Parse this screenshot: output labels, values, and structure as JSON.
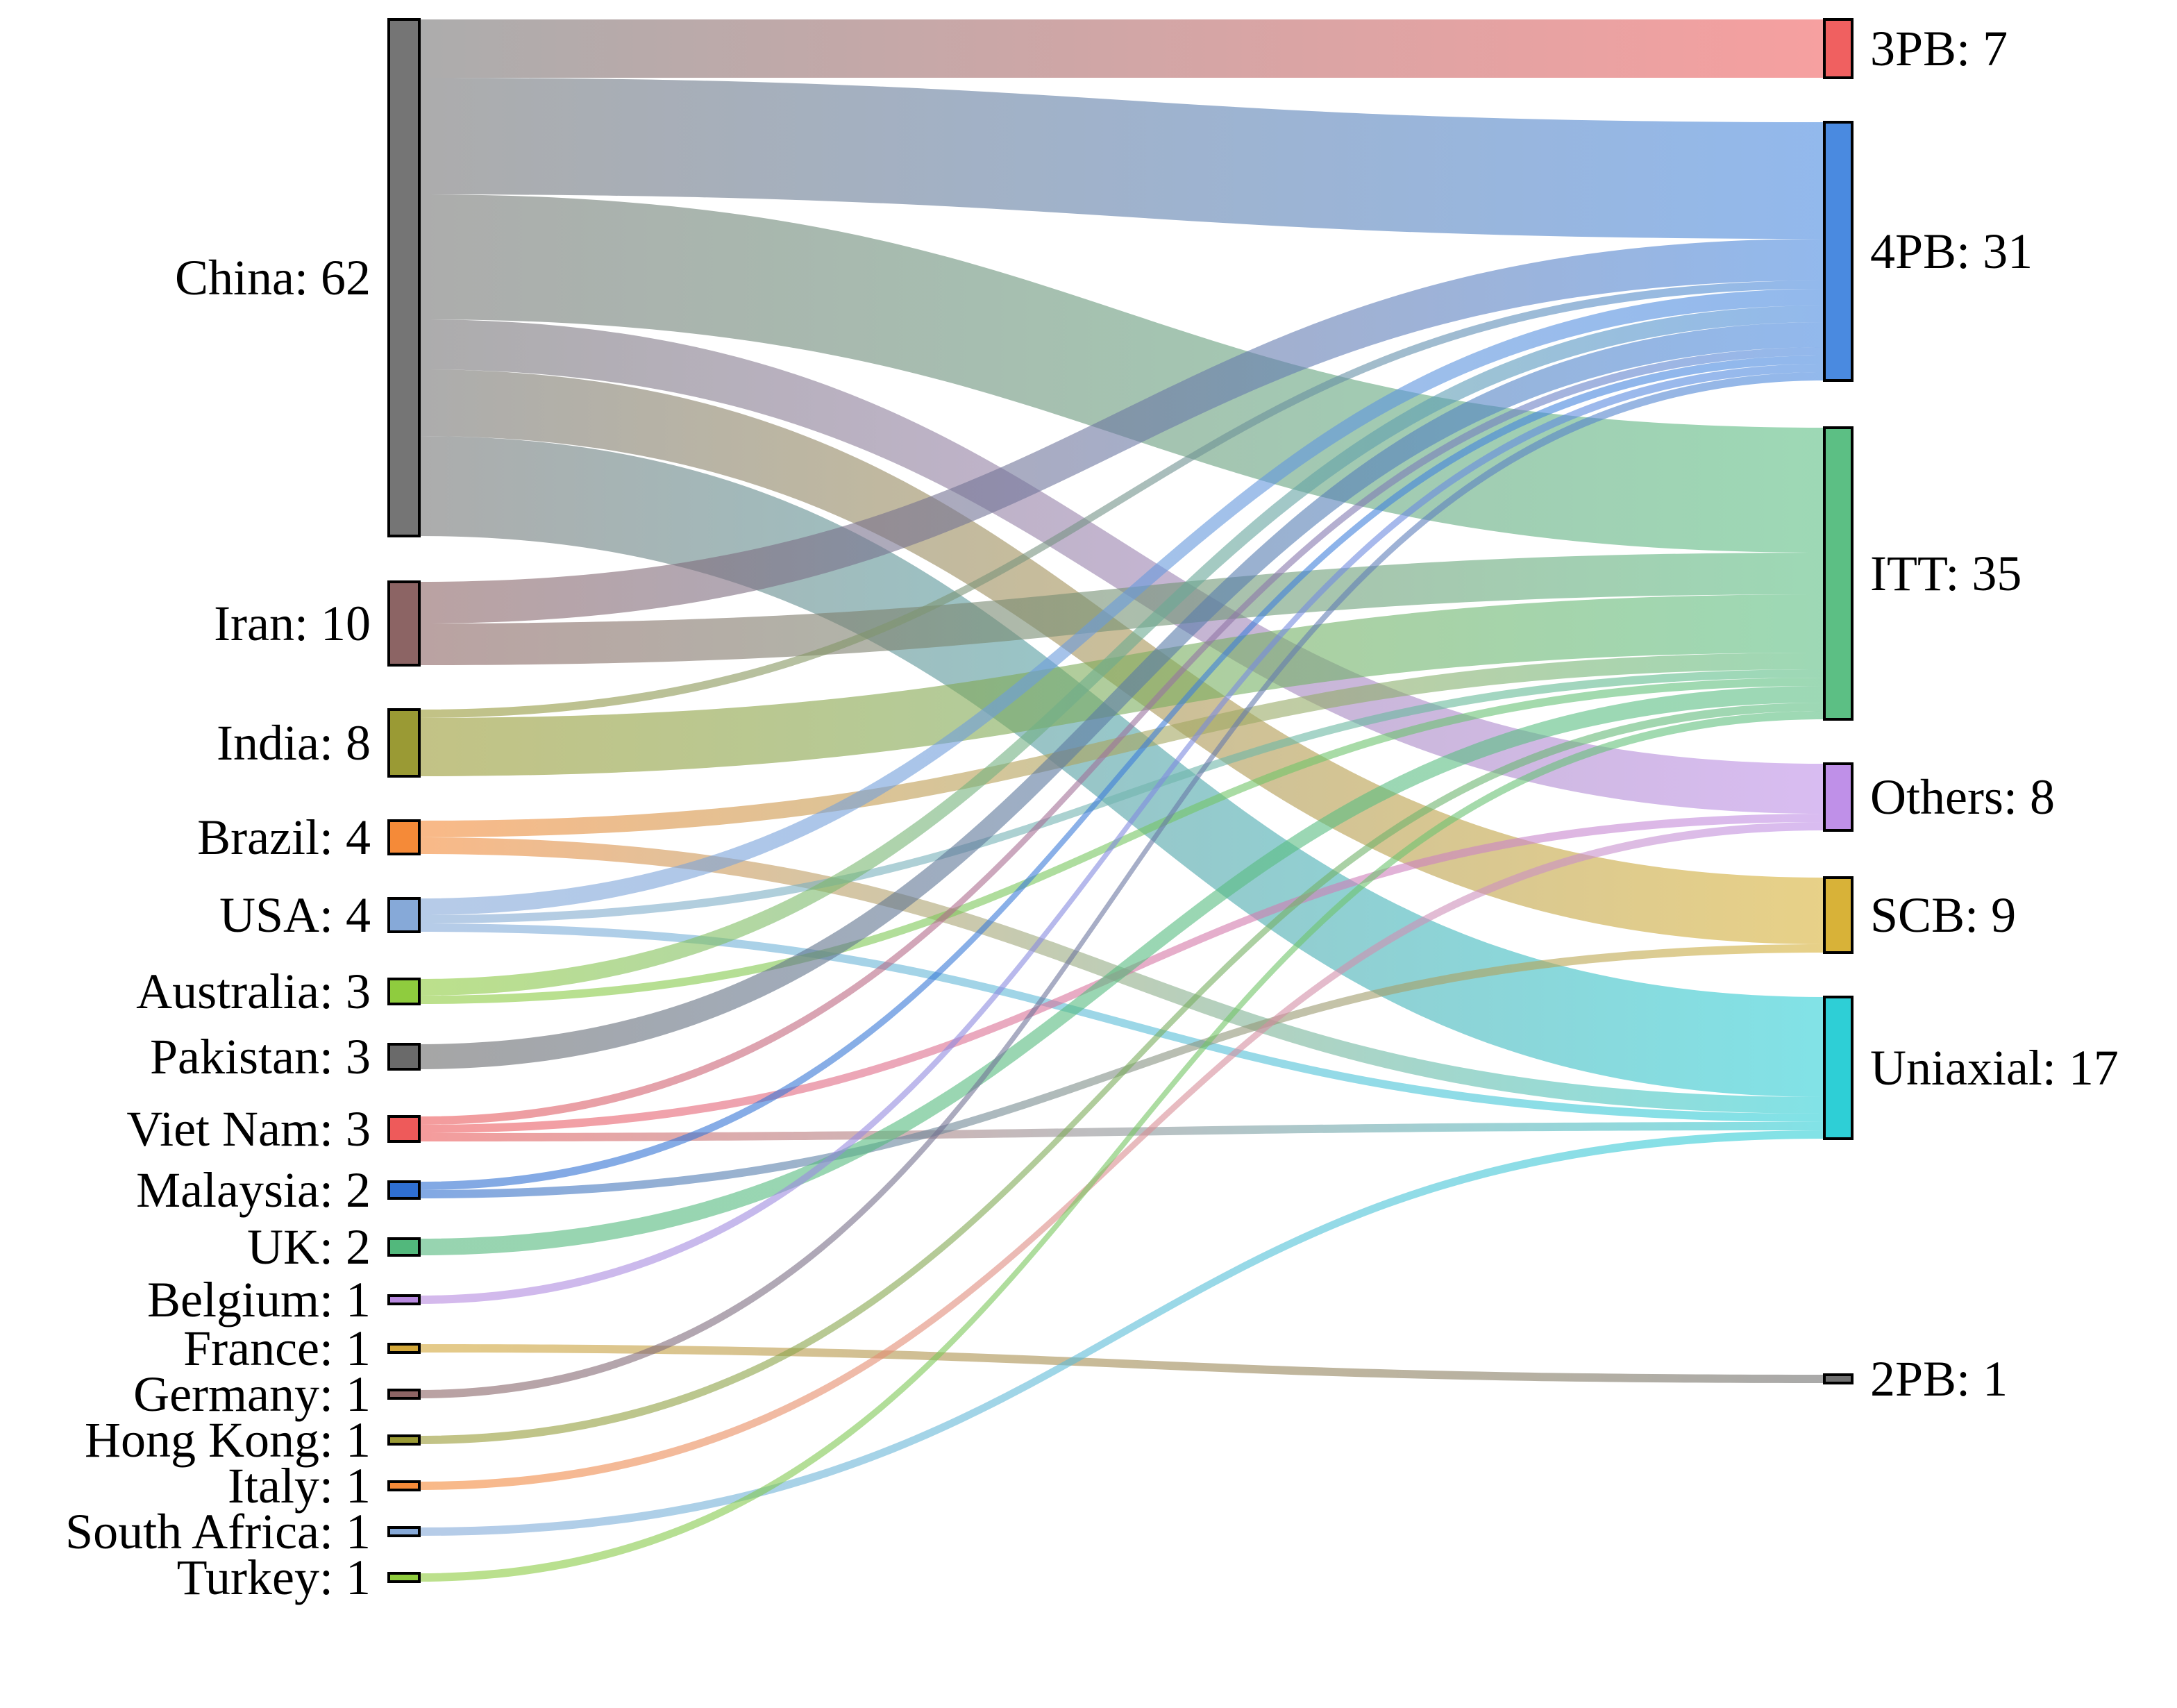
{
  "chart_data": {
    "type": "sankey",
    "title": "",
    "sources": [
      {
        "name": "China",
        "label": "China: 62",
        "value": 62,
        "color": "#757575"
      },
      {
        "name": "Iran",
        "label": "Iran: 10",
        "value": 10,
        "color": "#8c6464"
      },
      {
        "name": "India",
        "label": "India: 8",
        "value": 8,
        "color": "#9a9a34"
      },
      {
        "name": "Brazil",
        "label": "Brazil: 4",
        "value": 4,
        "color": "#f58a38"
      },
      {
        "name": "USA",
        "label": "USA: 4",
        "value": 4,
        "color": "#86a9d8"
      },
      {
        "name": "Australia",
        "label": "Australia: 3",
        "value": 3,
        "color": "#8fcc3e"
      },
      {
        "name": "Pakistan",
        "label": "Pakistan: 3",
        "value": 3,
        "color": "#6a6a6a"
      },
      {
        "name": "Viet Nam",
        "label": "Viet Nam: 3",
        "value": 3,
        "color": "#ee5a5a"
      },
      {
        "name": "Malaysia",
        "label": "Malaysia: 2",
        "value": 2,
        "color": "#2f6fd2"
      },
      {
        "name": "UK",
        "label": "UK: 2",
        "value": 2,
        "color": "#52b87c"
      },
      {
        "name": "Belgium",
        "label": "Belgium: 1",
        "value": 1,
        "color": "#b98ae0"
      },
      {
        "name": "France",
        "label": "France: 1",
        "value": 1,
        "color": "#d4a83a"
      },
      {
        "name": "Germany",
        "label": "Germany: 1",
        "value": 1,
        "color": "#8c6464"
      },
      {
        "name": "Hong Kong",
        "label": "Hong Kong: 1",
        "value": 1,
        "color": "#9a9a34"
      },
      {
        "name": "Italy",
        "label": "Italy: 1",
        "value": 1,
        "color": "#f58a38"
      },
      {
        "name": "South Africa",
        "label": "South Africa: 1",
        "value": 1,
        "color": "#86a9d8"
      },
      {
        "name": "Turkey",
        "label": "Turkey: 1",
        "value": 1,
        "color": "#8fcc3e"
      }
    ],
    "targets": [
      {
        "name": "3PB",
        "label": "3PB: 7",
        "value": 7,
        "color": "#f06060"
      },
      {
        "name": "4PB",
        "label": "4PB: 31",
        "value": 31,
        "color": "#4a8ae0"
      },
      {
        "name": "ITT",
        "label": "ITT: 35",
        "value": 35,
        "color": "#5cbf84"
      },
      {
        "name": "Others",
        "label": "Others: 8",
        "value": 8,
        "color": "#bf90e8"
      },
      {
        "name": "SCB",
        "label": "SCB: 9",
        "value": 9,
        "color": "#d8b238"
      },
      {
        "name": "Uniaxial",
        "label": "Uniaxial: 17",
        "value": 17,
        "color": "#2ecfd6"
      },
      {
        "name": "2PB",
        "label": "2PB: 1",
        "value": 1,
        "color": "#707070"
      }
    ],
    "links": [
      {
        "source": "China",
        "target": "3PB",
        "value": 7
      },
      {
        "source": "China",
        "target": "4PB",
        "value": 14
      },
      {
        "source": "China",
        "target": "ITT",
        "value": 15
      },
      {
        "source": "China",
        "target": "Others",
        "value": 6
      },
      {
        "source": "China",
        "target": "SCB",
        "value": 8
      },
      {
        "source": "China",
        "target": "Uniaxial",
        "value": 12
      },
      {
        "source": "Iran",
        "target": "4PB",
        "value": 5
      },
      {
        "source": "Iran",
        "target": "ITT",
        "value": 5
      },
      {
        "source": "India",
        "target": "4PB",
        "value": 1
      },
      {
        "source": "India",
        "target": "ITT",
        "value": 7
      },
      {
        "source": "Brazil",
        "target": "ITT",
        "value": 2
      },
      {
        "source": "Brazil",
        "target": "Uniaxial",
        "value": 2
      },
      {
        "source": "USA",
        "target": "4PB",
        "value": 2
      },
      {
        "source": "USA",
        "target": "ITT",
        "value": 1
      },
      {
        "source": "USA",
        "target": "Uniaxial",
        "value": 1
      },
      {
        "source": "Australia",
        "target": "4PB",
        "value": 2
      },
      {
        "source": "Australia",
        "target": "ITT",
        "value": 1
      },
      {
        "source": "Pakistan",
        "target": "4PB",
        "value": 3
      },
      {
        "source": "Viet Nam",
        "target": "4PB",
        "value": 1
      },
      {
        "source": "Viet Nam",
        "target": "Others",
        "value": 1
      },
      {
        "source": "Viet Nam",
        "target": "Uniaxial",
        "value": 1
      },
      {
        "source": "Malaysia",
        "target": "4PB",
        "value": 1
      },
      {
        "source": "Malaysia",
        "target": "SCB",
        "value": 1
      },
      {
        "source": "UK",
        "target": "ITT",
        "value": 2
      },
      {
        "source": "Belgium",
        "target": "4PB",
        "value": 1
      },
      {
        "source": "France",
        "target": "2PB",
        "value": 1
      },
      {
        "source": "Germany",
        "target": "4PB",
        "value": 1
      },
      {
        "source": "Hong Kong",
        "target": "ITT",
        "value": 1
      },
      {
        "source": "Italy",
        "target": "Others",
        "value": 1
      },
      {
        "source": "South Africa",
        "target": "Uniaxial",
        "value": 1
      },
      {
        "source": "Turkey",
        "target": "ITT",
        "value": 1
      }
    ]
  }
}
